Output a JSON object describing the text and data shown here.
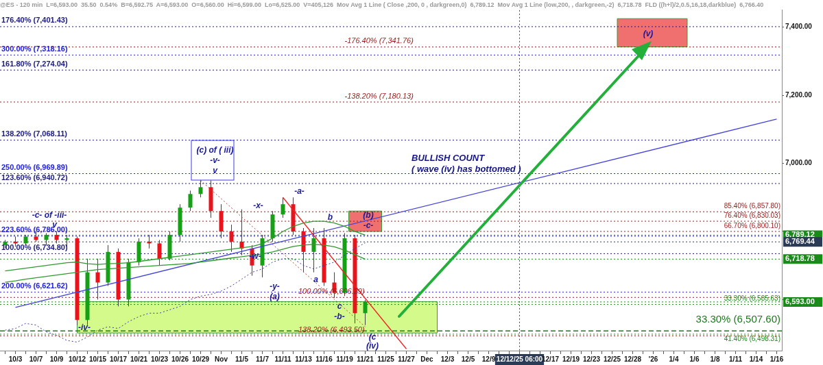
{
  "chart_data": {
    "type": "candlestick",
    "title": "@ES - 120 min  L=6,593.00  35.50  0.54%  B=6,592.75  A=6,593.00  O=6,560.00  Hi=6,599.00  Lo=6,525.00  V=405,126  Mov Avg 1 Line ( Close ,200, 0 , darkgreen,0)  6,789.12  Mov Avg 1 Line (low,200, , darkgreen,-2)  6,718.78  FLD ((h+l)/2,0.5,16,18,darkblue)  6,766.40",
    "categories": [
      null,
      "10/3",
      null,
      "10/7",
      null,
      "10/9",
      null,
      "10/12",
      null,
      "10/15",
      null,
      "10/17",
      null,
      "10/21",
      null,
      "10/23",
      null,
      "10/26",
      null,
      "10/29",
      null,
      "Nov",
      null,
      "11/5",
      null,
      "11/7",
      null,
      "11/11",
      null,
      "11/13",
      null,
      "11/16",
      null,
      "11/19",
      null,
      "11/21",
      null,
      "11/25",
      null,
      "11/27",
      null,
      "Dec",
      null,
      "12/3",
      null,
      "12/5",
      null,
      "12/9",
      null,
      null,
      "12/12/25 06:00",
      null,
      null,
      "12/17",
      null,
      "12/19",
      null,
      "12/23",
      null,
      "12/25",
      null,
      "12/28",
      null,
      "'26",
      null,
      "1/4",
      null,
      "1/6",
      null,
      "1/8",
      null,
      "1/11",
      null,
      "1/14",
      null,
      "1/16"
    ],
    "ohlc": [
      [
        6760,
        6775,
        6750,
        6770
      ],
      [
        6770,
        6785,
        6755,
        6765
      ],
      [
        6765,
        6790,
        6760,
        6785
      ],
      [
        6785,
        6800,
        6770,
        6775
      ],
      [
        6775,
        6795,
        6760,
        6790
      ],
      [
        6790,
        6800,
        6765,
        6775
      ],
      [
        6775,
        6790,
        6755,
        6780
      ],
      [
        6780,
        6785,
        6525,
        6540
      ],
      [
        6540,
        6720,
        6525,
        6680
      ],
      [
        6680,
        6720,
        6600,
        6650
      ],
      [
        6650,
        6760,
        6640,
        6740
      ],
      [
        6740,
        6750,
        6580,
        6600
      ],
      [
        6600,
        6720,
        6580,
        6710
      ],
      [
        6710,
        6780,
        6700,
        6770
      ],
      [
        6770,
        6790,
        6750,
        6765
      ],
      [
        6765,
        6775,
        6700,
        6720
      ],
      [
        6720,
        6800,
        6715,
        6790
      ],
      [
        6790,
        6880,
        6770,
        6870
      ],
      [
        6870,
        6920,
        6860,
        6910
      ],
      [
        6910,
        6950,
        6900,
        6930
      ],
      [
        6930,
        6950,
        6840,
        6860
      ],
      [
        6860,
        6880,
        6780,
        6800
      ],
      [
        6800,
        6820,
        6740,
        6770
      ],
      [
        6770,
        6865,
        6730,
        6750
      ],
      [
        6750,
        6760,
        6670,
        6700
      ],
      [
        6700,
        6790,
        6665,
        6780
      ],
      [
        6780,
        6860,
        6770,
        6850
      ],
      [
        6850,
        6900,
        6840,
        6880
      ],
      [
        6880,
        6900,
        6790,
        6800
      ],
      [
        6800,
        6810,
        6680,
        6740
      ],
      [
        6740,
        6810,
        6680,
        6780
      ],
      [
        6780,
        6810,
        6640,
        6650
      ],
      [
        6650,
        6680,
        6605,
        6620
      ],
      [
        6620,
        6795,
        6610,
        6780
      ],
      [
        6780,
        6790,
        6530,
        6560
      ],
      [
        6560,
        6599,
        6525,
        6593
      ],
      null,
      null,
      null,
      null,
      null,
      null,
      null,
      null,
      null,
      null,
      null,
      null,
      null,
      null,
      null,
      null,
      null,
      null,
      null,
      null,
      null,
      null,
      null,
      null,
      null,
      null,
      null,
      null,
      null,
      null,
      null,
      null,
      null,
      null,
      null,
      null,
      null,
      null,
      null,
      null
    ],
    "series": [
      {
        "type": "line",
        "color": "#2e9a2e",
        "values": [
          6684,
          6688,
          6692,
          6696,
          6700,
          6704,
          6708,
          6710,
          6705,
          6703,
          6705,
          6706,
          6708,
          6712,
          6716,
          6720,
          6724,
          6728,
          6732,
          6736,
          6740,
          6744,
          6748,
          6752,
          6756,
          6764,
          6780,
          6800,
          6815,
          6825,
          6830,
          6830,
          6825,
          6815,
          6800,
          6789.12,
          null,
          null,
          null,
          null,
          null,
          null,
          null,
          null,
          null,
          null,
          null,
          null,
          null,
          null,
          null,
          null,
          null,
          null,
          null,
          null,
          null,
          null,
          null,
          null,
          null,
          null,
          null,
          null,
          null,
          null,
          null,
          null,
          null,
          null,
          null,
          null,
          null,
          null,
          null,
          null
        ]
      },
      {
        "type": "line",
        "color": "#2e9a2e",
        "values": [
          6651,
          6655,
          6660,
          6664,
          6668,
          6672,
          6676,
          6680,
          6684,
          6688,
          6690,
          6692,
          6694,
          6696,
          6698,
          6700,
          6702,
          6704,
          6706,
          6710,
          6714,
          6718,
          6722,
          6726,
          6730,
          6734,
          6740,
          6748,
          6756,
          6760,
          6762,
          6760,
          6755,
          6745,
          6732,
          6718.78,
          null,
          null,
          null,
          null,
          null,
          null,
          null,
          null,
          null,
          null,
          null,
          null,
          null,
          null,
          null,
          null,
          null,
          null,
          null,
          null,
          null,
          null,
          null,
          null,
          null,
          null,
          null,
          null,
          null,
          null,
          null,
          null,
          null,
          null,
          null,
          null,
          null,
          null,
          null,
          null
        ]
      },
      {
        "type": "line",
        "color": "#3a3aa8",
        "line_style": "dotted",
        "values": [
          6510,
          6515,
          6530,
          6525,
          6505,
          6495,
          6480,
          6475,
          6490,
          6510,
          6520,
          6515,
          6535,
          6550,
          6560,
          6560,
          6570,
          6580,
          6600,
          6610,
          6615,
          6625,
          6640,
          6660,
          6680,
          6690,
          6710,
          6720,
          6720,
          6700,
          6690,
          6700,
          6710,
          6730,
          6750,
          6766.4,
          null,
          null,
          null,
          null,
          null,
          null,
          null,
          null,
          null,
          null,
          null,
          null,
          null,
          null,
          null,
          null,
          null,
          null,
          null,
          null,
          null,
          null,
          null,
          null,
          null,
          null,
          null,
          null,
          null,
          null,
          null,
          null,
          null,
          null,
          null,
          null,
          null,
          null,
          null,
          null
        ]
      },
      {
        "type": "line",
        "color": "#4444dd",
        "x": [
          "10/3",
          "1/16"
        ],
        "values": [
          6577,
          7130
        ]
      },
      {
        "type": "line",
        "color": "#ee2222",
        "x": [
          "11/11",
          "11/27"
        ],
        "values": [
          6900,
          6455
        ]
      },
      {
        "type": "line",
        "color": "#b04040",
        "line_style": "dotted",
        "x": [
          "10/29",
          "11/21"
        ],
        "values": [
          6950,
          6520
        ]
      }
    ],
    "ylim": [
      6450,
      7450
    ],
    "yticks": [
      {
        "value": 6600,
        "label": null
      },
      {
        "value": 6800,
        "label": null
      },
      {
        "value": 7000,
        "label": "7,000.00"
      },
      {
        "value": 7200,
        "label": "7,200.00"
      },
      {
        "value": 7400,
        "label": "7,400.00"
      }
    ],
    "ref_lines": [
      {
        "axis": "y",
        "value": 7401.43,
        "label": "176.40% (7,401.43)",
        "color": "#1a1a80",
        "line_style": "dotted"
      },
      {
        "axis": "y",
        "value": 7318.16,
        "label": "300.00% (7,318.16)",
        "color": "#2020e0",
        "line_style": "dotted"
      },
      {
        "axis": "y",
        "value": 7274.04,
        "label": "161.80% (7,274.04)",
        "color": "#1a1a80",
        "line_style": "dotted"
      },
      {
        "axis": "y",
        "value": 7068.11,
        "label": "138.20% (7,068.11)",
        "color": "#1a1a80",
        "line_style": "dotted"
      },
      {
        "axis": "y",
        "value": 6969.89,
        "label": "250.00% (6,969.89)",
        "color": "#2020e0",
        "line_style": "dotted"
      },
      {
        "axis": "y",
        "value": 6940.72,
        "label": "123.60% (6,940.72)",
        "color": "#1a1a80",
        "line_style": "dotted"
      },
      {
        "axis": "y",
        "value": 6786.0,
        "label": "223.60% (6,786.00)",
        "color": "#2020e0",
        "line_style": "dotted"
      },
      {
        "axis": "y",
        "value": 6734.8,
        "label": "100.00% (6,734.80)",
        "color": "#1a1a80",
        "line_style": "dotted"
      },
      {
        "axis": "y",
        "value": 6621.62,
        "label": "200.00% (6,621.62)",
        "color": "#2020e0",
        "line_style": "dotted"
      },
      {
        "axis": "y",
        "value": 7341.76,
        "label": "-176.40% (7,341.76)",
        "color": "#9a1a1a",
        "line_style": "dotted"
      },
      {
        "axis": "y",
        "value": 7180.13,
        "label": "-138.20% (7,180.13)",
        "color": "#9a1a1a",
        "line_style": "dotted"
      },
      {
        "axis": "y",
        "value": 6857.8,
        "label": "85.40% (6,857.80)",
        "color": "#9a1a1a",
        "line_style": "dotted"
      },
      {
        "axis": "y",
        "value": 6830.03,
        "label": "76.40% (6,830.03)",
        "color": "#9a1a1a",
        "line_style": "dotted"
      },
      {
        "axis": "y",
        "value": 6800.1,
        "label": "66.70% (6,800.10)",
        "color": "#9a1a1a",
        "line_style": "dotted"
      },
      {
        "axis": "y",
        "value": 6606.29,
        "label": "100.00% (6,606.29)",
        "color": "#9a1a1a",
        "line_style": "dotted"
      },
      {
        "axis": "y",
        "value": 6493.5,
        "label": "138.20% (6,493.50)",
        "color": "#9a1a1a",
        "line_style": "dotted"
      },
      {
        "axis": "y",
        "value": 6585.63,
        "label": "33.30% (6,585.63)",
        "color": "#1a8a1a",
        "line_style": "dotted"
      },
      {
        "axis": "y",
        "value": 6507.6,
        "label": "33.30% (6,507.60)",
        "color": "#1a7a1a",
        "line_style": "dashed"
      },
      {
        "axis": "y",
        "value": 6498.31,
        "label": "41.40% (6,498.31)",
        "color": "#1a8a1a",
        "line_style": "dotted"
      },
      {
        "axis": "y",
        "value": 6789.12,
        "label": "6,789.12",
        "color": "#1a8a1a",
        "line_style": "dotted"
      },
      {
        "axis": "y",
        "value": 6769.44,
        "label": "6,769.44",
        "color": "#2b3a55",
        "line_style": "dotted"
      },
      {
        "axis": "y",
        "value": 6718.78,
        "label": "6,718.78",
        "color": "#1a8a1a",
        "line_style": "dotted"
      },
      {
        "axis": "y",
        "value": 6593.0,
        "label": "6,593.00",
        "color": "#1a8a1a",
        "line_style": "dotted"
      },
      {
        "axis": "x",
        "value": "12/12/25 06:00",
        "color": "#444444",
        "line_style": "dotted"
      }
    ],
    "bands": [
      {
        "axis": "y",
        "from": 6502,
        "to": 6594,
        "color": "#d4fa8c"
      },
      {
        "axis": "y",
        "from": 6800,
        "to": 6860,
        "color": "#f07070"
      },
      {
        "axis": "y",
        "from": 7342,
        "to": 7425,
        "color": "#f07070"
      }
    ],
    "annotations": [
      "-c- of -iii-",
      "v",
      "(c) of ( iii)",
      "-v-",
      "v",
      "-x-",
      "-w-",
      "-y-",
      "(a)",
      "-a-",
      "b",
      "a",
      "c",
      "-b-",
      "(b)",
      "-c-",
      "(c",
      "(iv)",
      "-iv-",
      "BULLISH COUNT",
      "( wave (iv) has bottomed )",
      "(v)"
    ],
    "grid": false,
    "legend": false,
    "marker": "none"
  }
}
